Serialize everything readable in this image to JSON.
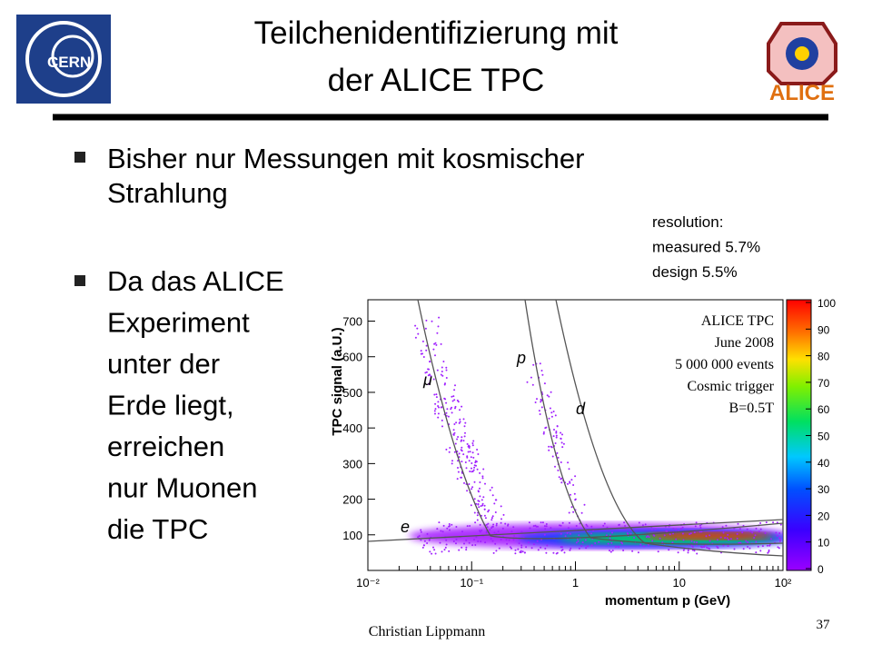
{
  "header": {
    "title_lines": [
      "Teilchenidentifizierung mit",
      "der ALICE TPC"
    ],
    "left_logo": "CERN",
    "right_logo": "ALICE"
  },
  "bullets": [
    {
      "lines": [
        "Bisher nur Messungen mit kosmischer",
        "Strahlung"
      ]
    },
    {
      "lines": [
        "Da das ALICE",
        "Experiment",
        "unter der",
        "Erde liegt,",
        "erreichen",
        "nur Muonen",
        "die TPC"
      ]
    }
  ],
  "resolution": [
    "resolution:",
    "measured  5.7%",
    "design      5.5%"
  ],
  "plot": {
    "x_label": "momentum p (GeV)",
    "y_label": "TPC signal (a.U.)",
    "log_x": true,
    "xlim": [
      0.01,
      100
    ],
    "xticks": [
      {
        "value": 0.01,
        "label": "10⁻²"
      },
      {
        "value": 0.1,
        "label": "10⁻¹"
      },
      1,
      10,
      {
        "value": 100,
        "label": "10²"
      }
    ],
    "ylim": [
      0,
      760
    ],
    "yticks": [
      100,
      200,
      300,
      400,
      500,
      600,
      700
    ],
    "info": [
      "ALICE TPC",
      "June 2008",
      "5 000 000 events",
      "Cosmic trigger",
      "B=0.5T"
    ],
    "curve_labels": [
      "μ",
      "p",
      "d",
      "e"
    ],
    "colorbar": {
      "lim": [
        0,
        100
      ],
      "ticks": [
        0,
        10,
        20,
        30,
        40,
        50,
        60,
        70,
        80,
        90,
        100
      ]
    }
  },
  "footer": {
    "author": "Christian Lippmann",
    "page": "37"
  }
}
